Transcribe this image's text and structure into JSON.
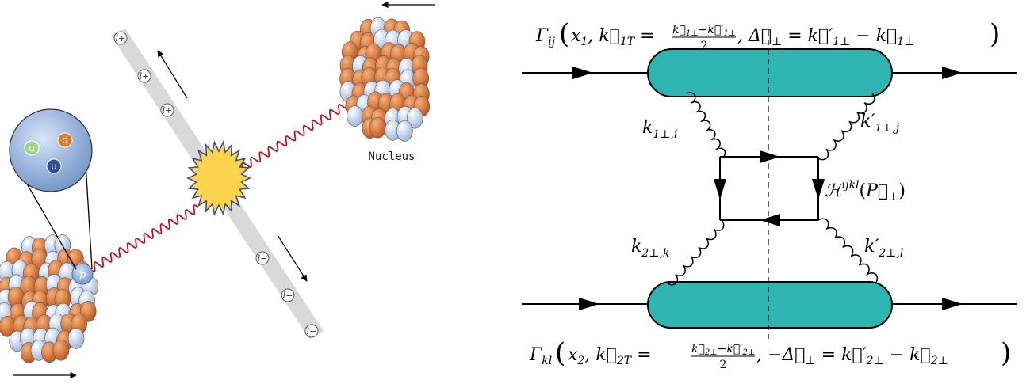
{
  "left_diagram": {
    "lepton_plus": "l+",
    "lepton_minus": "l−",
    "proton": "p",
    "quarks": [
      "u",
      "d",
      "u"
    ],
    "nucleus_label": "Nucleus"
  },
  "right_diagram": {
    "gamma_top": "Γij ( x1, k⃗1T = (k⃗1⊥ + k⃗′1⊥)/2 , Δ⃗⊥ = k⃗′1⊥ − k⃗1⊥ )",
    "gamma_bottom": "Γkl ( x2, k⃗2T = (k⃗2⊥ + k⃗′2⊥)/2 , −Δ⃗⊥ = k⃗′2⊥ − k⃗2⊥ )",
    "k1i": "k1⊥,i",
    "k1j": "k′1⊥,j",
    "k2k": "k2⊥,k",
    "k2l": "k′2⊥,l",
    "hard": "ℋijkl(P⃗⊥)"
  },
  "colors": {
    "blob": "#2fb5b1",
    "photon": "#c1121f",
    "nucleon_orange": "#d9742b",
    "nucleon_white": "#dfe9f7",
    "flash": "#fcd34d"
  }
}
